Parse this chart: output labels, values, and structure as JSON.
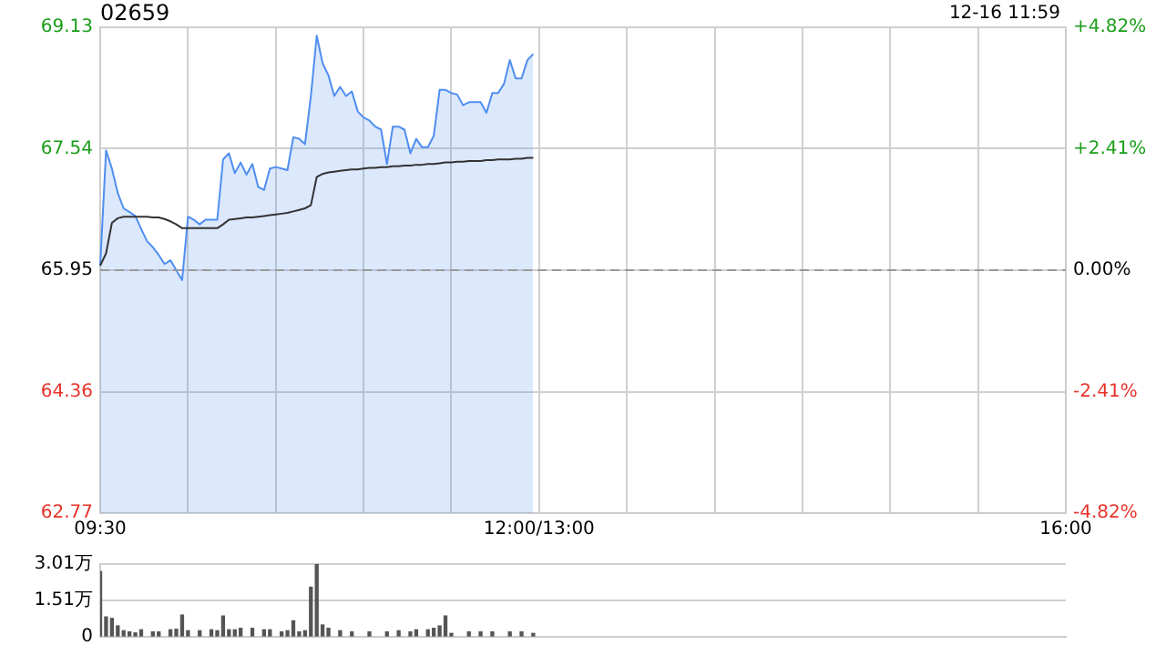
{
  "chart_data": [
    {
      "type": "area",
      "title": "02659",
      "annotations": [
        "12-16 11:59"
      ],
      "categories": [
        "09:30",
        null,
        null,
        null,
        null,
        null,
        null,
        null,
        null,
        null,
        null,
        null,
        null,
        null,
        null,
        null,
        null,
        null,
        null,
        null,
        null,
        null,
        null,
        null,
        null,
        null,
        null,
        null,
        null,
        null,
        null,
        null,
        null,
        null,
        null,
        null,
        null,
        null,
        null,
        null,
        null,
        null,
        null,
        null,
        null,
        null,
        null,
        null,
        null,
        null,
        null,
        null,
        null,
        null,
        null,
        null,
        null,
        null,
        null,
        null,
        null,
        null,
        null,
        null,
        null,
        null,
        null,
        null,
        null,
        null,
        null,
        null,
        null,
        null,
        null,
        "12:00/13:00",
        null,
        null,
        null,
        null,
        null,
        null,
        null,
        null,
        null,
        null,
        null,
        null,
        null,
        null,
        null,
        null,
        null,
        null,
        null,
        null,
        null,
        null,
        null,
        null,
        null,
        null,
        null,
        null,
        null,
        null,
        null,
        null,
        null,
        null,
        null,
        null,
        null,
        null,
        null,
        null,
        null,
        null,
        null,
        null,
        null,
        null,
        null,
        null,
        null,
        null,
        null,
        null,
        null,
        null,
        null,
        null,
        null,
        null,
        null,
        null,
        null,
        null,
        null,
        null,
        null,
        null,
        null,
        null,
        null,
        null,
        null,
        null,
        null,
        null,
        null,
        null,
        null,
        null,
        null,
        null,
        null,
        null,
        null,
        null,
        null,
        null,
        null,
        null,
        null,
        "16:00"
      ],
      "series": [
        {
          "type": "area",
          "color": "#4f8ef0",
          "values": [
            66.01,
            67.52,
            67.28,
            66.96,
            66.76,
            66.71,
            66.66,
            66.49,
            66.33,
            66.25,
            66.15,
            66.03,
            66.08,
            65.95,
            65.82,
            66.65,
            66.61,
            66.55,
            66.61,
            66.61,
            66.61,
            67.4,
            67.48,
            67.22,
            67.36,
            67.2,
            67.34,
            67.04,
            67.0,
            67.28,
            67.3,
            67.28,
            67.26,
            67.69,
            67.67,
            67.6,
            68.23,
            69.02,
            68.66,
            68.5,
            68.23,
            68.35,
            68.23,
            68.29,
            68.03,
            67.95,
            67.91,
            67.83,
            67.79,
            67.34,
            67.83,
            67.83,
            67.79,
            67.48,
            67.67,
            67.56,
            67.56,
            67.71,
            68.31,
            68.31,
            68.27,
            68.25,
            68.11,
            68.15,
            68.15,
            68.15,
            68.01,
            68.27,
            68.27,
            68.39,
            68.7,
            68.46,
            68.46,
            68.7,
            68.78,
            null,
            null,
            null,
            null,
            null,
            null,
            null,
            null,
            null,
            null,
            null,
            null,
            null,
            null,
            null,
            null,
            null,
            null,
            null,
            null,
            null,
            null,
            null,
            null,
            null,
            null,
            null,
            null,
            null,
            null,
            null,
            null,
            null,
            null,
            null,
            null,
            null,
            null,
            null,
            null,
            null,
            null,
            null,
            null,
            null,
            null,
            null,
            null,
            null,
            null,
            null,
            null,
            null,
            null,
            null,
            null,
            null,
            null,
            null,
            null,
            null,
            null,
            null,
            null,
            null,
            null,
            null,
            null,
            null,
            null,
            null,
            null,
            null,
            null,
            null,
            null,
            null,
            null,
            null,
            null,
            null,
            null,
            null,
            null,
            null,
            null,
            null,
            null,
            null,
            null,
            null
          ]
        },
        {
          "type": "line",
          "color": "#333333",
          "values": [
            66.01,
            66.17,
            66.57,
            66.63,
            66.65,
            66.65,
            66.65,
            66.65,
            66.65,
            66.64,
            66.64,
            66.62,
            66.59,
            66.55,
            66.5,
            66.5,
            66.5,
            66.5,
            66.5,
            66.5,
            66.5,
            66.55,
            66.61,
            66.62,
            66.63,
            66.64,
            66.64,
            66.65,
            66.66,
            66.67,
            66.68,
            66.69,
            66.7,
            66.72,
            66.74,
            66.76,
            66.8,
            67.17,
            67.21,
            67.23,
            67.24,
            67.25,
            67.26,
            67.27,
            67.27,
            67.28,
            67.29,
            67.29,
            67.3,
            67.3,
            67.31,
            67.31,
            67.32,
            67.32,
            67.33,
            67.33,
            67.34,
            67.34,
            67.35,
            67.36,
            67.36,
            67.37,
            67.37,
            67.38,
            67.38,
            67.38,
            67.39,
            67.39,
            67.4,
            67.4,
            67.4,
            67.41,
            67.41,
            67.42,
            67.42,
            null,
            null,
            null,
            null,
            null,
            null,
            null,
            null,
            null,
            null,
            null,
            null,
            null,
            null,
            null,
            null,
            null,
            null,
            null,
            null,
            null,
            null,
            null,
            null,
            null,
            null,
            null,
            null,
            null,
            null,
            null,
            null,
            null,
            null,
            null,
            null,
            null,
            null,
            null,
            null,
            null,
            null,
            null,
            null,
            null,
            null,
            null,
            null,
            null,
            null,
            null,
            null,
            null,
            null,
            null,
            null,
            null,
            null,
            null,
            null,
            null,
            null,
            null,
            null,
            null,
            null,
            null,
            null,
            null,
            null,
            null,
            null,
            null,
            null,
            null,
            null,
            null,
            null,
            null,
            null,
            null,
            null,
            null,
            null,
            null,
            null,
            null,
            null,
            null,
            null,
            null
          ]
        }
      ],
      "ylim": [
        62.77,
        69.13
      ],
      "yticks": [
        62.77,
        64.36,
        65.95,
        67.54,
        69.13
      ],
      "y2lim": [
        -4.82,
        4.82
      ],
      "y2ticks": [
        {
          "value": -4.82,
          "label": "-4.82%"
        },
        {
          "value": -2.41,
          "label": "-2.41%"
        },
        {
          "value": 0,
          "label": "0.00%"
        },
        {
          "value": 2.41,
          "label": "+2.41%"
        },
        {
          "value": 4.82,
          "label": "+4.82%"
        }
      ],
      "ref_lines": [
        {
          "axis": "y",
          "value": 65.95,
          "color": "#999999",
          "line_style": "dashed"
        }
      ],
      "grid": true
    },
    {
      "type": "bar",
      "color": "#555555",
      "tick_labels": "y",
      "grid": "y",
      "categories": [
        null,
        null,
        null,
        null,
        null,
        null,
        null,
        null,
        null,
        null,
        null,
        null,
        null,
        null,
        null,
        null,
        null,
        null,
        null,
        null,
        null,
        null,
        null,
        null,
        null,
        null,
        null,
        null,
        null,
        null,
        null,
        null,
        null,
        null,
        null,
        null,
        null,
        null,
        null,
        null,
        null,
        null,
        null,
        null,
        null,
        null,
        null,
        null,
        null,
        null,
        null,
        null,
        null,
        null,
        null,
        null,
        null,
        null,
        null,
        null,
        null,
        null,
        null,
        null,
        null,
        null,
        null,
        null,
        null,
        null,
        null,
        null,
        null,
        null,
        null,
        null,
        null,
        null,
        null,
        null,
        null,
        null,
        null,
        null,
        null,
        null,
        null,
        null,
        null,
        null,
        null,
        null,
        null,
        null,
        null,
        null,
        null,
        null,
        null,
        null,
        null,
        null,
        null,
        null,
        null,
        null,
        null,
        null,
        null,
        null,
        null,
        null,
        null,
        null,
        null,
        null,
        null,
        null,
        null,
        null,
        null,
        null,
        null,
        null,
        null,
        null,
        null,
        null,
        null,
        null,
        null,
        null,
        null,
        null,
        null,
        null,
        null,
        null,
        null,
        null,
        null,
        null,
        null,
        null,
        null,
        null,
        null,
        null,
        null,
        null,
        null,
        null,
        null,
        null,
        null,
        null,
        null,
        null,
        null,
        null,
        null,
        null,
        null,
        null,
        null,
        null
      ],
      "values": [
        2.7,
        0.82,
        0.76,
        0.45,
        0.25,
        0.2,
        0.16,
        0.29,
        null,
        0.2,
        0.2,
        null,
        0.29,
        0.31,
        0.9,
        0.25,
        null,
        0.25,
        null,
        0.29,
        0.25,
        0.86,
        0.29,
        0.29,
        0.35,
        null,
        0.35,
        null,
        0.29,
        0.29,
        null,
        0.2,
        0.25,
        0.66,
        0.2,
        0.25,
        2.05,
        3.01,
        0.49,
        0.35,
        null,
        0.25,
        null,
        0.2,
        null,
        null,
        0.2,
        null,
        null,
        0.2,
        null,
        0.25,
        null,
        0.2,
        0.29,
        null,
        0.29,
        0.35,
        0.45,
        0.86,
        0.14,
        null,
        null,
        0.2,
        null,
        0.2,
        null,
        0.2,
        null,
        null,
        0.2,
        null,
        0.2,
        null,
        0.14,
        null,
        null,
        null,
        null,
        null,
        null,
        null,
        null,
        null,
        null,
        null,
        null,
        null,
        null,
        null,
        null,
        null,
        null,
        null,
        null,
        null,
        null,
        null,
        null,
        null,
        null,
        null,
        null,
        null,
        null,
        null,
        null,
        null,
        null,
        null,
        null,
        null,
        null,
        null,
        null,
        null,
        null,
        null,
        null,
        null,
        null,
        null,
        null,
        null,
        null,
        null,
        null,
        null,
        null,
        null,
        null,
        null,
        null,
        null,
        null,
        null,
        null,
        null,
        null,
        null,
        null,
        null,
        null,
        null,
        null,
        null,
        null,
        null,
        null,
        null,
        null,
        null,
        null,
        null,
        null,
        null,
        null,
        null,
        null,
        null,
        null,
        null,
        null,
        null,
        null,
        null
      ],
      "ylim": [
        0,
        3.01
      ],
      "yticks": [
        0,
        {
          "value": 1.51,
          "label": "1.51万"
        },
        {
          "value": 3.01,
          "label": "3.01万"
        }
      ]
    }
  ]
}
